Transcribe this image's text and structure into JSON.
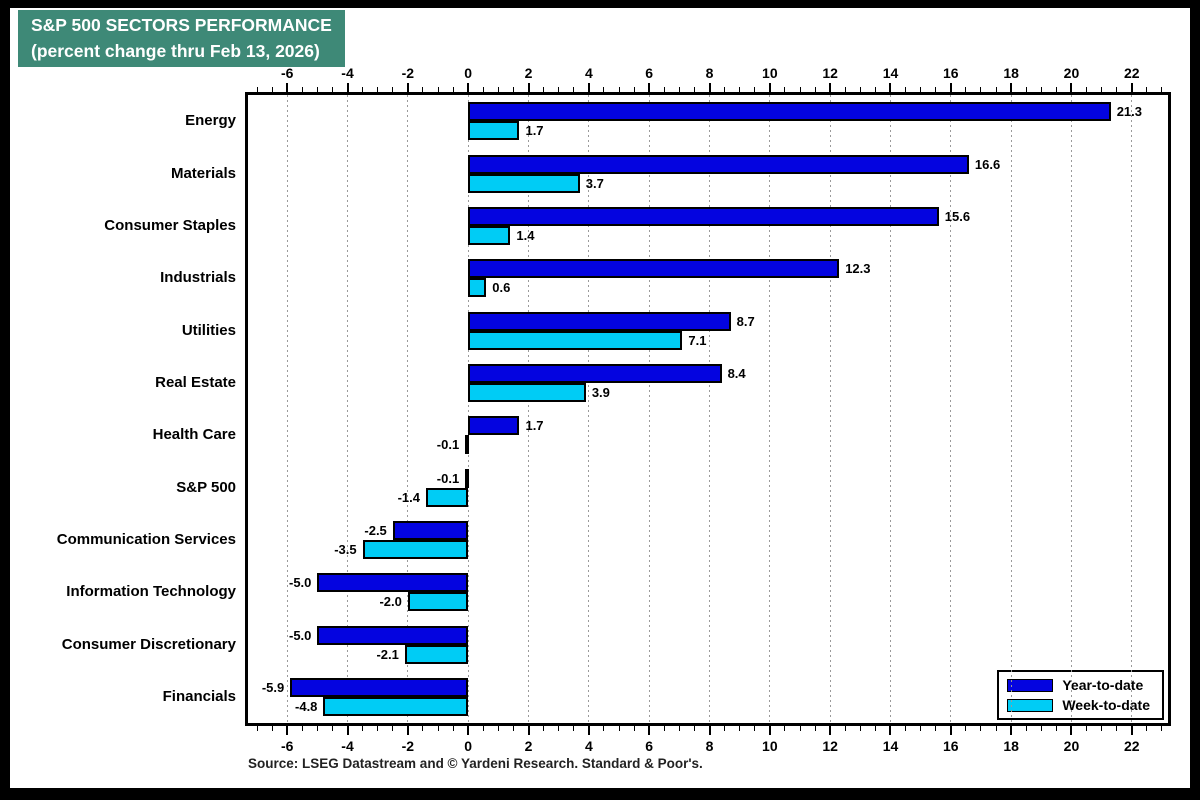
{
  "title": {
    "line1": "S&P 500 SECTORS PERFORMANCE",
    "line2": "(percent change thru Feb 13, 2026)",
    "bg_color": "#3E8977",
    "text_color": "#FFFFFF"
  },
  "source_note": "Source: LSEG Datastream and © Yardeni Research. Standard & Poor's.",
  "legend": {
    "items": [
      {
        "label": "Year-to-date",
        "color": "#0404E0"
      },
      {
        "label": "Week-to-date",
        "color": "#00CCF5"
      }
    ],
    "position": "bottom-right"
  },
  "colors": {
    "ytd_bar": "#0404E0",
    "wtd_bar": "#00CCF5",
    "bar_border": "#000000",
    "gridline": "#9A9A9A",
    "frame": "#000000"
  },
  "chart_data": {
    "type": "bar",
    "orientation": "horizontal",
    "title": "S&P 500 SECTORS PERFORMANCE (percent change thru Feb 13, 2026)",
    "xlabel": "",
    "ylabel": "",
    "categories": [
      "Energy",
      "Materials",
      "Consumer Staples",
      "Industrials",
      "Utilities",
      "Real Estate",
      "Health Care",
      "S&P 500",
      "Communication Services",
      "Information Technology",
      "Consumer Discretionary",
      "Financials"
    ],
    "series": [
      {
        "name": "Year-to-date",
        "color": "#0404E0",
        "values": [
          21.3,
          16.6,
          15.6,
          12.3,
          8.7,
          8.4,
          1.7,
          -0.1,
          -2.5,
          -5.0,
          -5.0,
          -5.9
        ]
      },
      {
        "name": "Week-to-date",
        "color": "#00CCF5",
        "values": [
          1.7,
          3.7,
          1.4,
          0.6,
          7.1,
          3.9,
          -0.1,
          -1.4,
          -3.5,
          -2.0,
          -2.1,
          -4.8
        ]
      }
    ],
    "xlim": [
      -7.3,
      23.2
    ],
    "x_major_ticks": [
      -6,
      -4,
      -2,
      0,
      2,
      4,
      6,
      8,
      10,
      12,
      14,
      16,
      18,
      20,
      22
    ],
    "x_minor_step": 0.5,
    "grid": "vertical dashed at major ticks",
    "value_labels": "one decimal, outside bar end",
    "legend_position": "bottom-right inside plot",
    "axes": "ticks and labels on top and bottom"
  }
}
